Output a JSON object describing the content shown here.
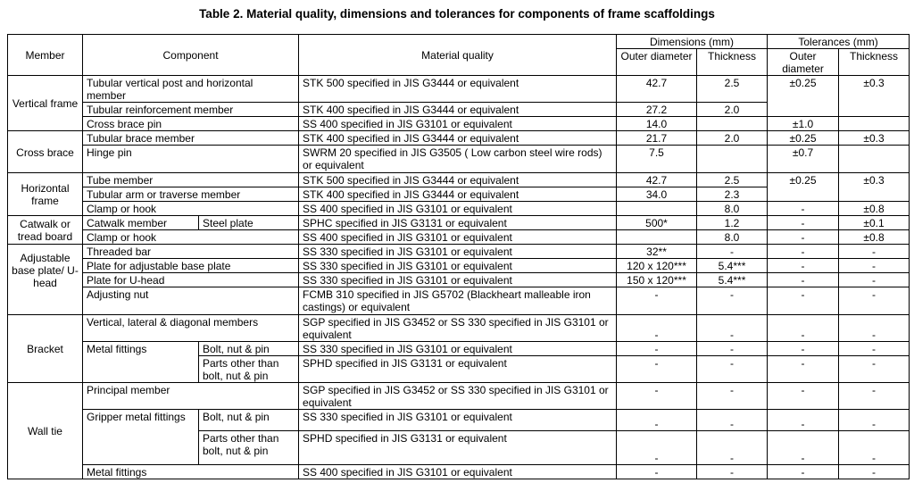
{
  "title": "Table 2. Material quality, dimensions and tolerances for components of frame scaffoldings",
  "headers": {
    "member": "Member",
    "component": "Component",
    "material": "Material quality",
    "dimensions": "Dimensions (mm)",
    "tolerances": "Tolerances (mm)",
    "outer_diameter": "Outer diameter",
    "thickness": "Thickness"
  },
  "groups": {
    "vertical_frame": "Vertical frame",
    "cross_brace": "Cross brace",
    "horizontal_frame": "Horizontal frame",
    "catwalk": "Catwalk or tread board",
    "adjustable": "Adjustable base plate/ U-head",
    "bracket": "Bracket",
    "wall_tie": "Wall tie"
  },
  "rows": [
    {
      "component": "Tubular vertical post and horizontal member",
      "material": "STK 500 specified in JIS G3444 or equivalent",
      "dim_od": "42.7",
      "dim_th": "2.5",
      "tol_od": "±0.25",
      "tol_th": "±0.3"
    },
    {
      "component": "Tubular reinforcement member",
      "material": "STK 400 specified in JIS G3444  or equivalent",
      "dim_od": "27.2",
      "dim_th": "2.0",
      "tol_od": "",
      "tol_th": ""
    },
    {
      "component": "Cross brace pin",
      "material": "SS 400 specified in JIS G3101  or equivalent",
      "dim_od": "14.0",
      "dim_th": "",
      "tol_od": "±1.0",
      "tol_th": ""
    },
    {
      "component": "Tubular brace member",
      "material": "STK 400 specified in JIS G3444  or equivalent",
      "dim_od": "21.7",
      "dim_th": "2.0",
      "tol_od": "±0.25",
      "tol_th": "±0.3"
    },
    {
      "component": "Hinge pin",
      "material": "SWRM 20 specified in JIS G3505 ( Low carbon steel wire rods)  or equivalent",
      "dim_od": "7.5",
      "dim_th": "",
      "tol_od": "±0.7",
      "tol_th": ""
    },
    {
      "component": "Tube member",
      "material": "STK 500 specified in JIS G3444  or equivalent",
      "dim_od": "42.7",
      "dim_th": "2.5",
      "tol_od": "±0.25",
      "tol_th": "±0.3"
    },
    {
      "component": "Tubular arm or traverse member",
      "material": "STK 400 specified in JIS G3444 or equivalent",
      "dim_od": "34.0",
      "dim_th": "2.3",
      "tol_od": "",
      "tol_th": ""
    },
    {
      "component": "Clamp or hook",
      "material": "SS 400 specified in JIS G3101  or equivalent",
      "dim_od": "",
      "dim_th": "8.0",
      "tol_od": "-",
      "tol_th": "±0.8"
    },
    {
      "component": "Catwalk member",
      "subcomponent": "Steel plate",
      "material": "SPHC specified in JIS G3131 or equivalent",
      "dim_od": "500*",
      "dim_th": "1.2",
      "tol_od": "-",
      "tol_th": "±0.1"
    },
    {
      "component": "Clamp or hook",
      "material": "SS 400 specified in JIS G3101 or equivalent",
      "dim_od": "",
      "dim_th": "8.0",
      "tol_od": "-",
      "tol_th": "±0.8"
    },
    {
      "component": "Threaded bar",
      "material": "SS 330 specified in JIS G3101 or equivalent",
      "dim_od": "32**",
      "dim_th": "-",
      "tol_od": "-",
      "tol_th": "-"
    },
    {
      "component": "Plate for adjustable base plate",
      "material": "SS 330 specified in JIS G3101 or equivalent",
      "dim_od": "120 x 120***",
      "dim_th": "5.4***",
      "tol_od": "-",
      "tol_th": "-"
    },
    {
      "component": "Plate for U-head",
      "material": "SS 330 specified in JIS G3101 or equivalent",
      "dim_od": "150 x 120***",
      "dim_th": "5.4***",
      "tol_od": "-",
      "tol_th": "-"
    },
    {
      "component": "Adjusting nut",
      "material": "FCMB 310 specified in JIS G5702 (Blackheart malleable iron castings)  or equivalent",
      "dim_od": "-",
      "dim_th": "-",
      "tol_od": "-",
      "tol_th": "-"
    },
    {
      "component": "Vertical, lateral & diagonal members",
      "material": "SGP specified in JIS G3452 or SS 330 specified in JIS G3101  or equivalent",
      "dim_od": "-",
      "dim_th": "-",
      "tol_od": "-",
      "tol_th": "-"
    },
    {
      "component": "Metal fittings",
      "subcomponent": "Bolt, nut & pin",
      "material": "SS 330 specified in JIS G3101  or equivalent",
      "dim_od": "-",
      "dim_th": "-",
      "tol_od": "-",
      "tol_th": "-"
    },
    {
      "subcomponent": "Parts other than bolt, nut & pin",
      "material": "SPHD specified in JIS G3131  or equivalent",
      "dim_od": "-",
      "dim_th": "-",
      "tol_od": "-",
      "tol_th": "-"
    },
    {
      "component": "Principal member",
      "material": "SGP specified in JIS G3452 or SS 330 specified in JIS G3101  or equivalent",
      "dim_od": "-",
      "dim_th": "-",
      "tol_od": "-",
      "tol_th": "-"
    },
    {
      "component": "Gripper metal fittings",
      "subcomponent": "Bolt, nut & pin",
      "material": "SS 330 specified in JIS G3101  or equivalent",
      "dim_od": "-",
      "dim_th": "-",
      "tol_od": "-",
      "tol_th": "-"
    },
    {
      "subcomponent": "Parts other than bolt, nut & pin",
      "material": "SPHD specified in JIS G3131 or equivalent",
      "dim_od": "-",
      "dim_th": "-",
      "tol_od": "-",
      "tol_th": "-"
    },
    {
      "component": "Metal fittings",
      "material": "SS 400 specified in JIS G3101 or equivalent",
      "dim_od": "-",
      "dim_th": "-",
      "tol_od": "-",
      "tol_th": "-"
    }
  ]
}
